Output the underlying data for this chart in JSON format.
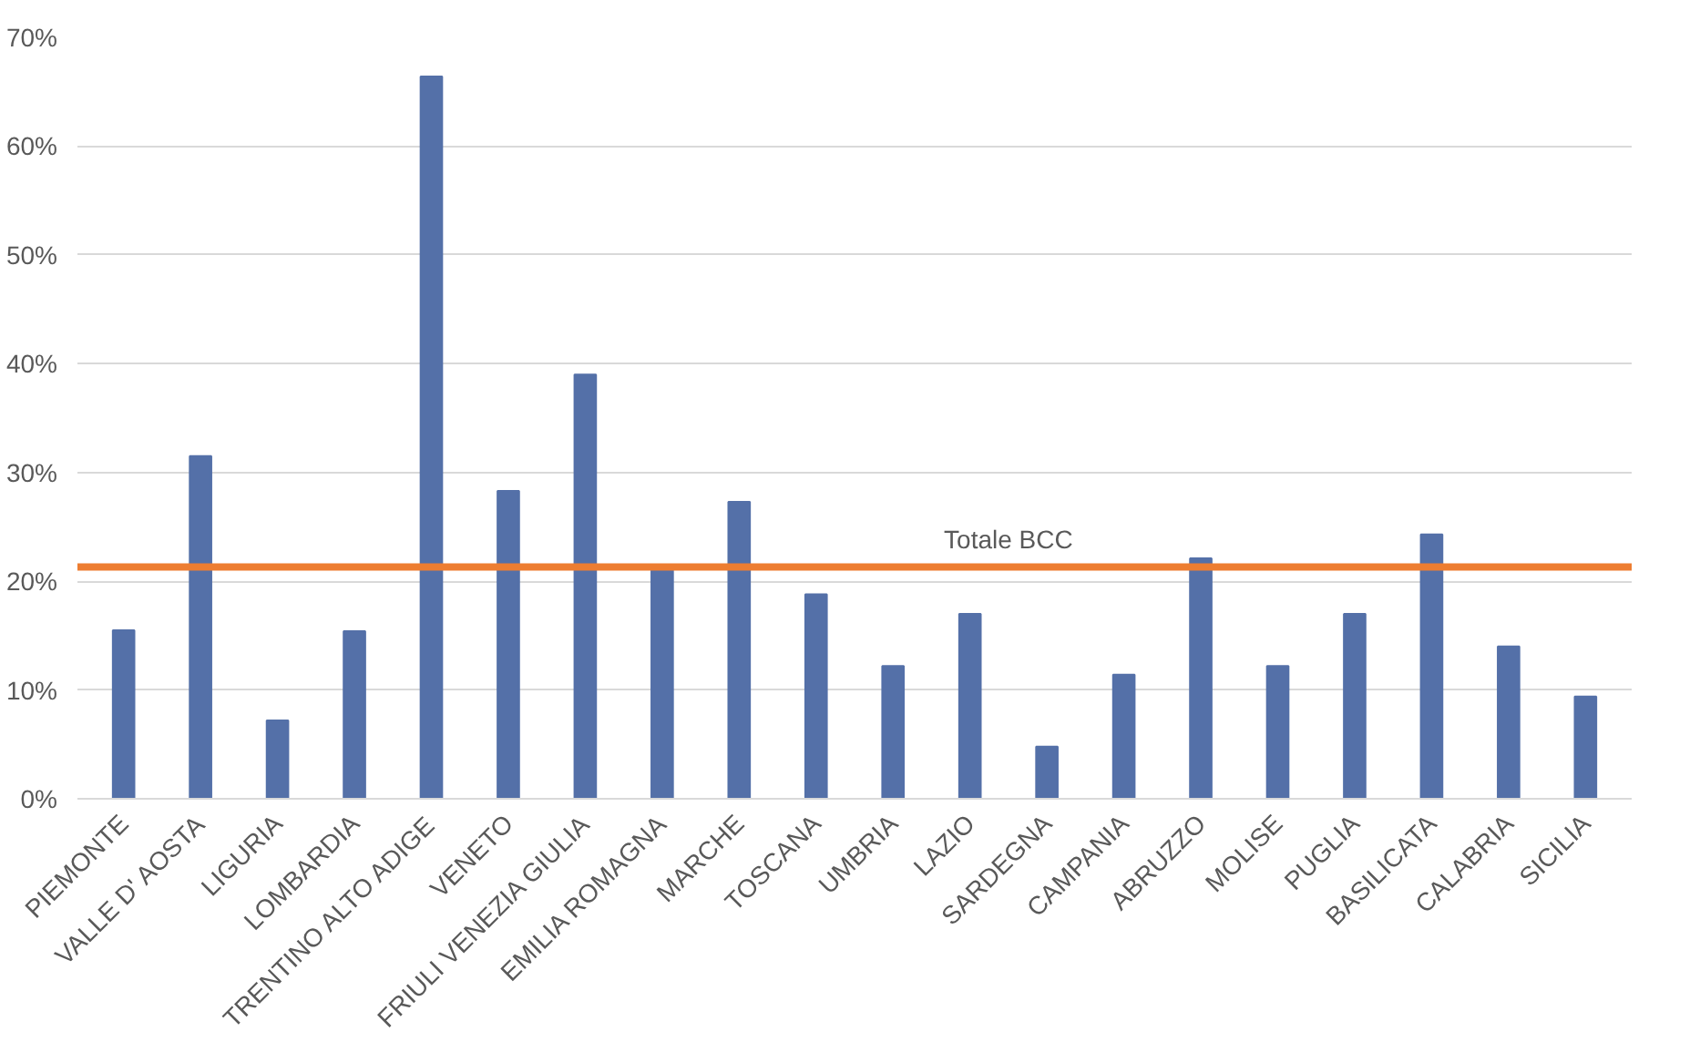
{
  "chart_data": {
    "type": "bar",
    "categories": [
      "PIEMONTE",
      "VALLE D' AOSTA",
      "LIGURIA",
      "LOMBARDIA",
      "TRENTINO ALTO ADIGE",
      "VENETO",
      "FRIULI VENEZIA GIULIA",
      "EMILIA ROMAGNA",
      "MARCHE",
      "TOSCANA",
      "UMBRIA",
      "LAZIO",
      "SARDEGNA",
      "CAMPANIA",
      "ABRUZZO",
      "MOLISE",
      "PUGLIA",
      "BASILICATA",
      "CALABRIA",
      "SICILIA"
    ],
    "values": [
      15.5,
      31.5,
      7.2,
      15.4,
      66.4,
      28.3,
      39.0,
      21.0,
      27.3,
      18.8,
      12.2,
      17.0,
      4.8,
      11.4,
      22.1,
      12.2,
      17.0,
      24.3,
      14.0,
      9.4
    ],
    "color": "#5470a8",
    "ylim": [
      0,
      70
    ],
    "yticks": [
      {
        "value": 0,
        "label": "0%"
      },
      {
        "value": 10,
        "label": "10%"
      },
      {
        "value": 20,
        "label": "20%"
      },
      {
        "value": 30,
        "label": "30%"
      },
      {
        "value": 40,
        "label": "40%"
      },
      {
        "value": 50,
        "label": "50%"
      },
      {
        "value": 60,
        "label": "60%"
      },
      {
        "value": 70,
        "label": "70%"
      }
    ],
    "grid": "y",
    "ref_lines": [
      {
        "axis": "y",
        "value": 21.3,
        "label": "Totale BCC",
        "color": "#ed7d31"
      }
    ]
  }
}
